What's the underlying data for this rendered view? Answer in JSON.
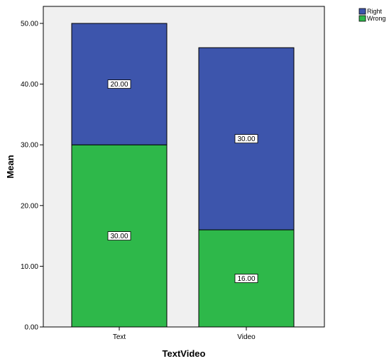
{
  "chart_data": {
    "type": "bar",
    "stacked": true,
    "categories": [
      "Text",
      "Video"
    ],
    "series": [
      {
        "name": "Wrong",
        "values": [
          30,
          16
        ],
        "value_labels": [
          "30.00",
          "16.00"
        ],
        "color": "#2eb84a"
      },
      {
        "name": "Right",
        "values": [
          20,
          30
        ],
        "value_labels": [
          "20.00",
          "30.00"
        ],
        "color": "#3d55ac"
      }
    ],
    "xlabel": "TextVideo",
    "ylabel": "Mean",
    "ylim": [
      0,
      50
    ],
    "yticks": [
      0,
      10,
      20,
      30,
      40,
      50
    ],
    "ytick_labels": [
      "0.00",
      "10.00",
      "20.00",
      "30.00",
      "40.00",
      "50.00"
    ],
    "legend": {
      "placement": "top-right",
      "entries": [
        "Right",
        "Wrong"
      ]
    },
    "plot_background": "#f0f0f0",
    "grid": false
  }
}
